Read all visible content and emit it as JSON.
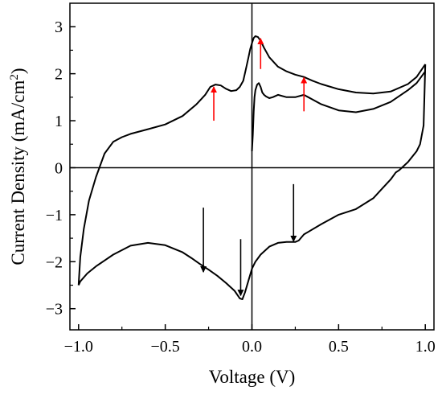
{
  "chart_data": {
    "type": "line",
    "title": "",
    "xlabel": "Voltage (V)",
    "ylabel": {
      "text": "Current Density (mA/cm",
      "sup": "2",
      "close": ")"
    },
    "xlim": [
      -1.05,
      1.05
    ],
    "ylim": [
      -3.45,
      3.5
    ],
    "grid": false,
    "legend": "none",
    "zero_lines": true,
    "line_color": "#000000",
    "x_ticks": [
      {
        "value": -1.0,
        "label": "−1.0"
      },
      {
        "value": -0.5,
        "label": "−0.5"
      },
      {
        "value": 0.0,
        "label": "0.0"
      },
      {
        "value": 0.5,
        "label": "0.5"
      },
      {
        "value": 1.0,
        "label": "1.0"
      }
    ],
    "y_ticks": [
      {
        "value": -3,
        "label": "−3"
      },
      {
        "value": -2,
        "label": "−2"
      },
      {
        "value": -1,
        "label": "−1"
      },
      {
        "value": 0,
        "label": "0"
      },
      {
        "value": 1,
        "label": "1"
      },
      {
        "value": 2,
        "label": "2"
      },
      {
        "value": 3,
        "label": "3"
      }
    ],
    "series": [
      {
        "x": [
          -1.0,
          -0.99,
          -0.97,
          -0.94,
          -0.9,
          -0.87,
          -0.85,
          -0.8,
          -0.75,
          -0.7,
          -0.6,
          -0.5,
          -0.4,
          -0.32,
          -0.27,
          -0.24,
          -0.21,
          -0.18,
          -0.15,
          -0.12,
          -0.09,
          -0.07,
          -0.05,
          -0.035,
          -0.02,
          -0.01,
          0.0,
          0.01,
          0.02,
          0.035,
          0.05,
          0.07,
          0.1,
          0.15,
          0.2,
          0.25,
          0.3,
          0.35,
          0.4,
          0.5,
          0.6,
          0.7,
          0.8,
          0.9,
          0.95,
          1.0
        ],
        "y": [
          -2.5,
          -1.9,
          -1.3,
          -0.7,
          -0.2,
          0.1,
          0.3,
          0.55,
          0.65,
          0.72,
          0.82,
          0.92,
          1.1,
          1.35,
          1.55,
          1.72,
          1.77,
          1.75,
          1.68,
          1.63,
          1.65,
          1.72,
          1.85,
          2.1,
          2.35,
          2.52,
          2.65,
          2.76,
          2.8,
          2.78,
          2.7,
          2.55,
          2.35,
          2.15,
          2.05,
          1.98,
          1.93,
          1.85,
          1.78,
          1.67,
          1.6,
          1.58,
          1.62,
          1.78,
          1.93,
          2.2
        ]
      },
      {
        "x": [
          1.0,
          0.995,
          0.99,
          0.97,
          0.95,
          0.9,
          0.85,
          0.83,
          0.8,
          0.75,
          0.7,
          0.6,
          0.5,
          0.4,
          0.3,
          0.27,
          0.25,
          0.2,
          0.15,
          0.1,
          0.05,
          0.03,
          0.02,
          0.0,
          -0.02,
          -0.04,
          -0.055,
          -0.07,
          -0.1,
          -0.15,
          -0.2,
          -0.25,
          -0.3,
          -0.35,
          -0.4,
          -0.5,
          -0.6,
          -0.7,
          -0.8,
          -0.9,
          -0.95,
          -0.99,
          -1.0
        ],
        "y": [
          2.2,
          1.5,
          0.9,
          0.5,
          0.35,
          0.12,
          -0.05,
          -0.1,
          -0.25,
          -0.45,
          -0.65,
          -0.88,
          -1.0,
          -1.2,
          -1.42,
          -1.55,
          -1.58,
          -1.58,
          -1.6,
          -1.68,
          -1.85,
          -1.95,
          -2.0,
          -2.15,
          -2.4,
          -2.65,
          -2.8,
          -2.78,
          -2.62,
          -2.45,
          -2.3,
          -2.17,
          -2.05,
          -1.92,
          -1.8,
          -1.65,
          -1.6,
          -1.66,
          -1.85,
          -2.1,
          -2.25,
          -2.42,
          -2.5
        ]
      },
      {
        "x": [
          0.0,
          0.005,
          0.01,
          0.015,
          0.02,
          0.03,
          0.04,
          0.05,
          0.06,
          0.07,
          0.08,
          0.1,
          0.12,
          0.15,
          0.2,
          0.25,
          0.3,
          0.35,
          0.4,
          0.5,
          0.6,
          0.7,
          0.8,
          0.9,
          0.95,
          1.0
        ],
        "y": [
          0.35,
          0.7,
          1.2,
          1.5,
          1.65,
          1.77,
          1.8,
          1.72,
          1.6,
          1.55,
          1.52,
          1.48,
          1.5,
          1.55,
          1.5,
          1.5,
          1.55,
          1.45,
          1.35,
          1.22,
          1.18,
          1.25,
          1.4,
          1.65,
          1.8,
          2.05
        ]
      }
    ],
    "arrows": [
      {
        "color": "#ff0000",
        "direction": "up",
        "x": -0.22,
        "y_from": 1.0,
        "y_to": 1.72
      },
      {
        "color": "#ff0000",
        "direction": "up",
        "x": 0.05,
        "y_from": 2.1,
        "y_to": 2.75
      },
      {
        "color": "#ff0000",
        "direction": "up",
        "x": 0.3,
        "y_from": 1.2,
        "y_to": 1.92
      },
      {
        "color": "#000000",
        "direction": "down",
        "x": -0.28,
        "y_from": -0.85,
        "y_to": -2.22
      },
      {
        "color": "#000000",
        "direction": "down",
        "x": -0.065,
        "y_from": -1.52,
        "y_to": -2.72
      },
      {
        "color": "#000000",
        "direction": "down",
        "x": 0.24,
        "y_from": -0.35,
        "y_to": -1.57
      }
    ]
  }
}
